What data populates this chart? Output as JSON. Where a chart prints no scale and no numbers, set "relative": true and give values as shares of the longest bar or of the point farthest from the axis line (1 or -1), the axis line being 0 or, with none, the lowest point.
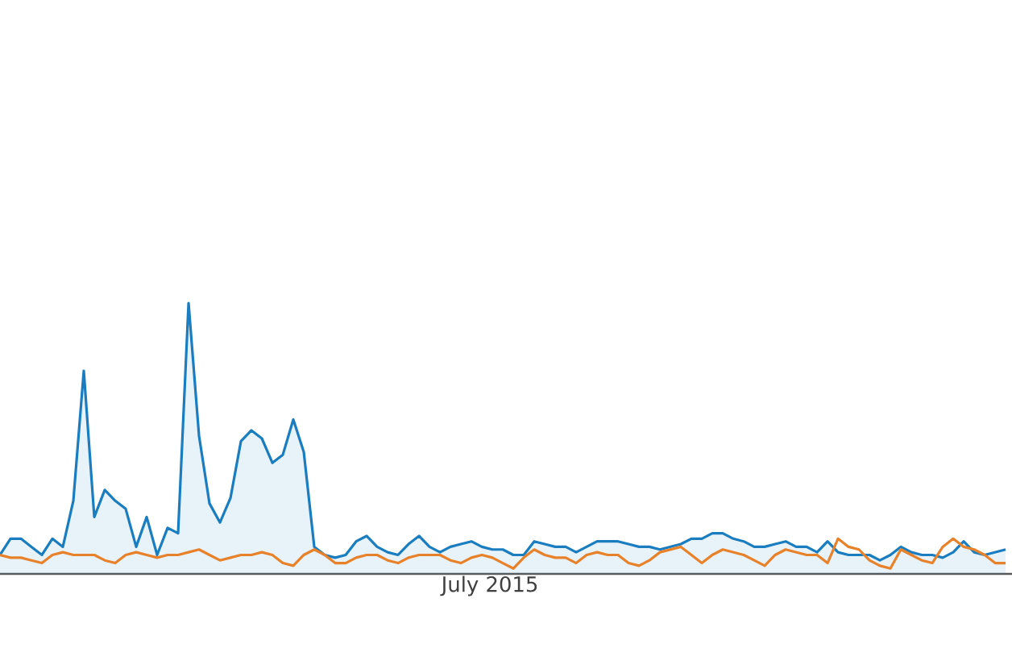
{
  "chart_data": {
    "type": "area",
    "relative": true,
    "xlabel": "July 2015",
    "categories": [
      null,
      null,
      null,
      null,
      null,
      null,
      null,
      null,
      null,
      null,
      null,
      null,
      null,
      null,
      null,
      null,
      null,
      null,
      null,
      null,
      null,
      null,
      null,
      null,
      null,
      null,
      null,
      null,
      null,
      null,
      null,
      null,
      null,
      null,
      null,
      null,
      null,
      null,
      null,
      null,
      null,
      null,
      null,
      null,
      null,
      null,
      null,
      null,
      null,
      null,
      null,
      null,
      null,
      null,
      null,
      null,
      null,
      null,
      null,
      null,
      null,
      null,
      null,
      null,
      null,
      null,
      null,
      null,
      null,
      null,
      null,
      null,
      null,
      null,
      null,
      null,
      null,
      null,
      null,
      null,
      null,
      null,
      null,
      null,
      null,
      null,
      null,
      null,
      null,
      null,
      null,
      null,
      null,
      null,
      null,
      null,
      null
    ],
    "series": [
      {
        "color": "#1a7dc0",
        "values": [
          0.07,
          0.13,
          0.13,
          0.1,
          0.07,
          0.13,
          0.1,
          0.27,
          0.75,
          0.21,
          0.31,
          0.27,
          0.24,
          0.1,
          0.21,
          0.07,
          0.17,
          0.15,
          1,
          0.51,
          0.26,
          0.19,
          0.28,
          0.49,
          0.53,
          0.5,
          0.41,
          0.44,
          0.57,
          0.45,
          0.1,
          0.07,
          0.06,
          0.07,
          0.12,
          0.14,
          0.1,
          0.08,
          0.07,
          0.11,
          0.14,
          0.1,
          0.08,
          0.1,
          0.11,
          0.12,
          0.1,
          0.09,
          0.09,
          0.07,
          0.07,
          0.12,
          0.11,
          0.1,
          0.1,
          0.08,
          0.1,
          0.12,
          0.12,
          0.12,
          0.11,
          0.1,
          0.1,
          0.09,
          0.1,
          0.11,
          0.13,
          0.13,
          0.15,
          0.15,
          0.13,
          0.12,
          0.1,
          0.1,
          0.11,
          0.12,
          0.1,
          0.1,
          0.08,
          0.12,
          0.08,
          0.07,
          0.07,
          0.07,
          0.05,
          0.07,
          0.1,
          0.08,
          0.07,
          0.07,
          0.06,
          0.08,
          0.12,
          0.08,
          0.07,
          0.08,
          0.09
        ]
      },
      {
        "type": "line",
        "color": "#e8822a",
        "values": [
          0.07,
          0.06,
          0.06,
          0.05,
          0.04,
          0.07,
          0.08,
          0.07,
          0.07,
          0.07,
          0.05,
          0.04,
          0.07,
          0.08,
          0.07,
          0.06,
          0.07,
          0.07,
          0.08,
          0.09,
          0.07,
          0.05,
          0.06,
          0.07,
          0.07,
          0.08,
          0.07,
          0.04,
          0.03,
          0.07,
          0.09,
          0.07,
          0.04,
          0.04,
          0.06,
          0.07,
          0.07,
          0.05,
          0.04,
          0.06,
          0.07,
          0.07,
          0.07,
          0.05,
          0.04,
          0.06,
          0.07,
          0.06,
          0.04,
          0.02,
          0.06,
          0.09,
          0.07,
          0.06,
          0.06,
          0.04,
          0.07,
          0.08,
          0.07,
          0.07,
          0.04,
          0.03,
          0.05,
          0.08,
          0.09,
          0.1,
          0.07,
          0.04,
          0.07,
          0.09,
          0.08,
          0.07,
          0.05,
          0.03,
          0.07,
          0.09,
          0.08,
          0.07,
          0.07,
          0.04,
          0.13,
          0.1,
          0.09,
          0.05,
          0.03,
          0.02,
          0.09,
          0.07,
          0.05,
          0.04,
          0.1,
          0.13,
          0.1,
          0.09,
          0.07,
          0.04,
          0.04
        ]
      }
    ]
  }
}
